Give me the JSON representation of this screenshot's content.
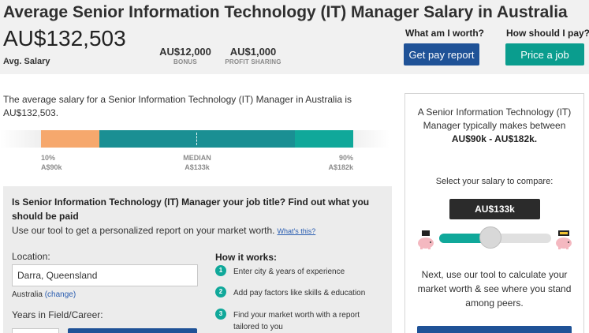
{
  "header": {
    "title": "Average Senior Information Technology (IT) Manager Salary in Australia",
    "avg_salary": "AU$132,503",
    "avg_label": "Avg. Salary",
    "bonus_value": "AU$12,000",
    "bonus_label": "BONUS",
    "profit_value": "AU$1,000",
    "profit_label": "PROFIT SHARING",
    "worth_question": "What am I worth?",
    "pay_question": "How should I pay?",
    "pay_report_button": "Get pay report",
    "price_job_button": "Price a job"
  },
  "intro": "The average salary for a Senior Information Technology (IT) Manager in Australia is AU$132,503.",
  "distribution": {
    "p10_label": "10%",
    "p10_value": "A$90k",
    "median_label": "MEDIAN",
    "median_value": "A$133k",
    "p90_label": "90%",
    "p90_value": "A$182k"
  },
  "tool": {
    "question": "Is Senior Information Technology (IT) Manager your job title? Find out what you should be paid",
    "subtitle": "Use our tool to get a personalized report on your market worth.",
    "whats_this": "What's this?",
    "location_label": "Location:",
    "location_value": "Darra, Queensland",
    "country": "Australia",
    "change_link": "(change)",
    "years_label": "Years in Field/Career:",
    "how_title": "How it works:",
    "steps": [
      {
        "num": "1",
        "text": "Enter city & years of experience"
      },
      {
        "num": "2",
        "text": "Add pay factors like skills & education"
      },
      {
        "num": "3",
        "text": "Find your market worth with a report tailored to you"
      }
    ]
  },
  "card": {
    "intro": "A Senior Information Technology (IT) Manager typically makes between",
    "range": "AU$90k - AU$182k.",
    "select_label": "Select your salary to compare:",
    "selected_salary": "AU$133k",
    "slider_position": 0.46,
    "footer": "Next, use our tool to calculate your market worth & see where you stand among peers."
  },
  "colors": {
    "low_segment": "#f6a86d",
    "mid_segment": "#1a8f93",
    "high_segment": "#10a89a",
    "primary_button": "#1f5297",
    "accent_button": "#0a9d8e"
  },
  "icons": [
    "piggy-bank-low-icon",
    "piggy-bank-high-icon"
  ]
}
